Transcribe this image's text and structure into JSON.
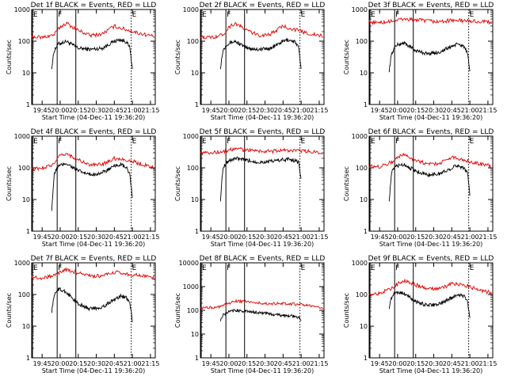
{
  "figure": {
    "ylabel": "Counts/sec",
    "xlabel": "Start Time (04-Dec-11 19:36:20)",
    "x_ticks": [
      "19:45",
      "20:00",
      "20:15",
      "20:30",
      "20:45",
      "21:00",
      "21:15"
    ],
    "colors": {
      "events": "#000000",
      "lld": "#e00000",
      "axes": "#000000"
    }
  },
  "chart_data": [
    {
      "type": "line",
      "title": "Det 1f BLACK = Events, RED = LLD",
      "yscale": "log",
      "ylim": [
        1,
        1000
      ],
      "y_ticks": [
        "1",
        "10",
        "100",
        "1000"
      ],
      "xlim": [
        "19:36:20",
        "21:19:00"
      ],
      "xticks": [
        "19:45",
        "20:00",
        "20:15",
        "20:30",
        "20:45",
        "21:00",
        "21:15"
      ],
      "markers": [
        {
          "label": "E",
          "time": "19:37:00",
          "style": "solid"
        },
        {
          "label": "F",
          "time": "19:57:30",
          "style": "solid"
        },
        {
          "label": "",
          "time": "20:13:00",
          "style": "solid"
        },
        {
          "label": "E",
          "time": "20:59:00",
          "style": "dotted"
        }
      ],
      "series": [
        {
          "name": "Events",
          "color": "#000000",
          "time": [
            "19:53",
            "19:55",
            "19:58",
            "20:05",
            "20:15",
            "20:25",
            "20:35",
            "20:45",
            "20:50",
            "20:55",
            "20:58",
            "21:00"
          ],
          "values": [
            15,
            50,
            80,
            100,
            60,
            55,
            60,
            100,
            110,
            95,
            60,
            12
          ]
        },
        {
          "name": "LLD",
          "color": "#e00000",
          "time": [
            "19:36",
            "19:45",
            "19:55",
            "20:00",
            "20:05",
            "20:15",
            "20:25",
            "20:35",
            "20:45",
            "20:55",
            "21:05",
            "21:15",
            "21:18"
          ],
          "values": [
            140,
            130,
            160,
            280,
            370,
            220,
            150,
            170,
            300,
            230,
            180,
            150,
            140
          ]
        }
      ]
    },
    {
      "type": "line",
      "title": "Det 2f BLACK = Events, RED = LLD",
      "yscale": "log",
      "ylim": [
        1,
        1000
      ],
      "y_ticks": [
        "1",
        "10",
        "100",
        "1000"
      ],
      "xlim": [
        "19:36:20",
        "21:19:00"
      ],
      "xticks": [
        "19:45",
        "20:00",
        "20:15",
        "20:30",
        "20:45",
        "21:00",
        "21:15"
      ],
      "markers": [
        {
          "label": "E",
          "time": "19:37:00",
          "style": "solid"
        },
        {
          "label": "F",
          "time": "19:57:30",
          "style": "solid"
        },
        {
          "label": "",
          "time": "20:13:00",
          "style": "solid"
        },
        {
          "label": "E",
          "time": "20:59:00",
          "style": "dotted"
        }
      ],
      "series": [
        {
          "name": "Events",
          "color": "#000000",
          "time": [
            "19:53",
            "19:55",
            "19:58",
            "20:05",
            "20:15",
            "20:25",
            "20:35",
            "20:45",
            "20:50",
            "20:55",
            "20:58",
            "21:00"
          ],
          "values": [
            15,
            50,
            80,
            100,
            60,
            55,
            60,
            100,
            110,
            95,
            60,
            12
          ]
        },
        {
          "name": "LLD",
          "color": "#e00000",
          "time": [
            "19:36",
            "19:45",
            "19:55",
            "20:00",
            "20:05",
            "20:15",
            "20:25",
            "20:35",
            "20:45",
            "20:55",
            "21:05",
            "21:15",
            "21:18"
          ],
          "values": [
            140,
            130,
            160,
            280,
            370,
            220,
            150,
            170,
            300,
            230,
            180,
            150,
            140
          ]
        }
      ]
    },
    {
      "type": "line",
      "title": "Det 3f BLACK = Events, RED = LLD",
      "yscale": "log",
      "ylim": [
        1,
        1000
      ],
      "y_ticks": [
        "1",
        "10",
        "100",
        "1000"
      ],
      "xlim": [
        "19:36:20",
        "21:19:00"
      ],
      "xticks": [
        "19:45",
        "20:00",
        "20:15",
        "20:30",
        "20:45",
        "21:00",
        "21:15"
      ],
      "markers": [
        {
          "label": "E",
          "time": "19:37:00",
          "style": "solid"
        },
        {
          "label": "F",
          "time": "19:57:30",
          "style": "solid"
        },
        {
          "label": "",
          "time": "20:13:00",
          "style": "solid"
        },
        {
          "label": "E",
          "time": "20:59:00",
          "style": "dotted"
        }
      ],
      "series": [
        {
          "name": "Events",
          "color": "#000000",
          "time": [
            "19:53",
            "19:55",
            "19:58",
            "20:05",
            "20:15",
            "20:25",
            "20:35",
            "20:45",
            "20:50",
            "20:55",
            "20:58",
            "21:00"
          ],
          "values": [
            12,
            40,
            70,
            90,
            50,
            40,
            45,
            70,
            80,
            70,
            40,
            10
          ]
        },
        {
          "name": "LLD",
          "color": "#e00000",
          "time": [
            "19:36",
            "19:45",
            "19:55",
            "20:00",
            "20:05",
            "20:15",
            "20:25",
            "20:35",
            "20:45",
            "20:55",
            "21:05",
            "21:15",
            "21:18"
          ],
          "values": [
            400,
            380,
            420,
            460,
            500,
            470,
            430,
            410,
            460,
            440,
            420,
            400,
            390
          ]
        }
      ]
    },
    {
      "type": "line",
      "title": "Det 4f BLACK = Events, RED = LLD",
      "yscale": "log",
      "ylim": [
        1,
        1000
      ],
      "y_ticks": [
        "1",
        "10",
        "100",
        "1000"
      ],
      "xlim": [
        "19:36:20",
        "21:19:00"
      ],
      "xticks": [
        "19:45",
        "20:00",
        "20:15",
        "20:30",
        "20:45",
        "21:00",
        "21:15"
      ],
      "markers": [
        {
          "label": "E",
          "time": "19:37:00",
          "style": "solid"
        },
        {
          "label": "F",
          "time": "19:57:30",
          "style": "solid"
        },
        {
          "label": "",
          "time": "20:13:00",
          "style": "solid"
        },
        {
          "label": "E",
          "time": "20:59:00",
          "style": "dotted"
        }
      ],
      "series": [
        {
          "name": "Events",
          "color": "#000000",
          "time": [
            "19:53",
            "19:55",
            "19:58",
            "20:05",
            "20:15",
            "20:25",
            "20:35",
            "20:45",
            "20:50",
            "20:55",
            "20:58",
            "21:00"
          ],
          "values": [
            5,
            60,
            110,
            140,
            80,
            60,
            70,
            110,
            130,
            100,
            60,
            10
          ]
        },
        {
          "name": "LLD",
          "color": "#e00000",
          "time": [
            "19:36",
            "19:45",
            "19:55",
            "20:00",
            "20:05",
            "20:15",
            "20:25",
            "20:35",
            "20:45",
            "20:55",
            "21:05",
            "21:15",
            "21:18"
          ],
          "values": [
            90,
            100,
            130,
            240,
            280,
            180,
            120,
            130,
            200,
            180,
            140,
            110,
            100
          ]
        }
      ]
    },
    {
      "type": "line",
      "title": "Det 5f BLACK = Events, RED = LLD",
      "yscale": "log",
      "ylim": [
        1,
        1000
      ],
      "y_ticks": [
        "1",
        "10",
        "100",
        "1000"
      ],
      "xlim": [
        "19:36:20",
        "21:19:00"
      ],
      "xticks": [
        "19:45",
        "20:00",
        "20:15",
        "20:30",
        "20:45",
        "21:00",
        "21:15"
      ],
      "markers": [
        {
          "label": "E",
          "time": "19:37:00",
          "style": "solid"
        },
        {
          "label": "F",
          "time": "19:57:30",
          "style": "solid"
        },
        {
          "label": "",
          "time": "20:13:00",
          "style": "solid"
        },
        {
          "label": "E",
          "time": "20:59:00",
          "style": "dotted"
        }
      ],
      "series": [
        {
          "name": "Events",
          "color": "#000000",
          "time": [
            "19:53",
            "19:55",
            "19:58",
            "20:05",
            "20:15",
            "20:25",
            "20:35",
            "20:45",
            "20:50",
            "20:55",
            "20:58",
            "21:00"
          ],
          "values": [
            10,
            100,
            150,
            200,
            170,
            150,
            160,
            180,
            190,
            170,
            150,
            40
          ]
        },
        {
          "name": "LLD",
          "color": "#e00000",
          "time": [
            "19:36",
            "19:45",
            "19:55",
            "20:00",
            "20:05",
            "20:15",
            "20:25",
            "20:35",
            "20:45",
            "20:55",
            "21:05",
            "21:15",
            "21:18"
          ],
          "values": [
            300,
            300,
            320,
            360,
            400,
            370,
            340,
            330,
            360,
            350,
            330,
            310,
            300
          ]
        }
      ]
    },
    {
      "type": "line",
      "title": "Det 6f BLACK = Events, RED = LLD",
      "yscale": "log",
      "ylim": [
        1,
        1000
      ],
      "y_ticks": [
        "1",
        "10",
        "100",
        "1000"
      ],
      "xlim": [
        "19:36:20",
        "21:19:00"
      ],
      "xticks": [
        "19:45",
        "20:00",
        "20:15",
        "20:30",
        "20:45",
        "21:00",
        "21:15"
      ],
      "markers": [
        {
          "label": "E",
          "time": "19:37:00",
          "style": "solid"
        },
        {
          "label": "F",
          "time": "19:57:30",
          "style": "solid"
        },
        {
          "label": "",
          "time": "20:13:00",
          "style": "solid"
        },
        {
          "label": "E",
          "time": "20:59:00",
          "style": "dotted"
        }
      ],
      "series": [
        {
          "name": "Events",
          "color": "#000000",
          "time": [
            "19:53",
            "19:55",
            "19:58",
            "20:05",
            "20:15",
            "20:25",
            "20:35",
            "20:45",
            "20:50",
            "20:55",
            "20:58",
            "21:00"
          ],
          "values": [
            10,
            70,
            110,
            130,
            80,
            60,
            65,
            100,
            120,
            100,
            70,
            15
          ]
        },
        {
          "name": "LLD",
          "color": "#e00000",
          "time": [
            "19:36",
            "19:45",
            "19:55",
            "20:00",
            "20:05",
            "20:15",
            "20:25",
            "20:35",
            "20:45",
            "20:55",
            "21:05",
            "21:15",
            "21:18"
          ],
          "values": [
            110,
            110,
            150,
            220,
            260,
            180,
            130,
            140,
            220,
            180,
            140,
            120,
            110
          ]
        }
      ]
    },
    {
      "type": "line",
      "title": "Det 7f BLACK = Events, RED = LLD",
      "yscale": "log",
      "ylim": [
        1,
        1000
      ],
      "y_ticks": [
        "1",
        "10",
        "100",
        "1000"
      ],
      "xlim": [
        "19:36:20",
        "21:19:00"
      ],
      "xticks": [
        "19:45",
        "20:00",
        "20:15",
        "20:30",
        "20:45",
        "21:00",
        "21:15"
      ],
      "markers": [
        {
          "label": "E",
          "time": "19:37:00",
          "style": "solid"
        },
        {
          "label": "F",
          "time": "19:57:30",
          "style": "solid"
        },
        {
          "label": "",
          "time": "20:13:00",
          "style": "solid"
        },
        {
          "label": "E",
          "time": "20:59:00",
          "style": "dotted"
        }
      ],
      "series": [
        {
          "name": "Events",
          "color": "#000000",
          "time": [
            "19:53",
            "19:55",
            "19:58",
            "20:05",
            "20:15",
            "20:25",
            "20:35",
            "20:45",
            "20:50",
            "20:55",
            "20:58",
            "21:00"
          ],
          "values": [
            30,
            90,
            150,
            120,
            50,
            35,
            40,
            70,
            90,
            80,
            50,
            15
          ]
        },
        {
          "name": "LLD",
          "color": "#e00000",
          "time": [
            "19:36",
            "19:45",
            "19:55",
            "20:00",
            "20:05",
            "20:15",
            "20:25",
            "20:35",
            "20:45",
            "20:55",
            "21:05",
            "21:15",
            "21:18"
          ],
          "values": [
            350,
            330,
            400,
            520,
            600,
            480,
            380,
            380,
            500,
            450,
            400,
            350,
            330
          ]
        }
      ]
    },
    {
      "type": "line",
      "title": "Det 8f BLACK = Events, RED = LLD",
      "yscale": "log",
      "ylim": [
        1,
        10000
      ],
      "y_ticks": [
        "1",
        "10",
        "100",
        "1000",
        "10000"
      ],
      "xlim": [
        "19:36:20",
        "21:19:00"
      ],
      "xticks": [
        "19:45",
        "20:00",
        "20:15",
        "20:30",
        "20:45",
        "21:00",
        "21:15"
      ],
      "markers": [
        {
          "label": "E",
          "time": "19:37:00",
          "style": "solid"
        },
        {
          "label": "F",
          "time": "19:57:30",
          "style": "solid"
        },
        {
          "label": "",
          "time": "20:13:00",
          "style": "solid"
        },
        {
          "label": "E",
          "time": "20:59:00",
          "style": "dotted"
        }
      ],
      "series": [
        {
          "name": "Events",
          "color": "#000000",
          "time": [
            "19:53",
            "19:55",
            "19:58",
            "20:05",
            "20:15",
            "20:25",
            "20:35",
            "20:45",
            "20:50",
            "20:55",
            "20:58",
            "21:00"
          ],
          "values": [
            40,
            60,
            80,
            100,
            90,
            80,
            70,
            60,
            60,
            55,
            50,
            40
          ]
        },
        {
          "name": "LLD",
          "color": "#e00000",
          "time": [
            "19:36",
            "19:45",
            "19:55",
            "20:00",
            "20:05",
            "20:15",
            "20:25",
            "20:35",
            "20:45",
            "20:55",
            "21:05",
            "21:15",
            "21:18"
          ],
          "values": [
            120,
            130,
            150,
            200,
            250,
            230,
            200,
            190,
            200,
            180,
            160,
            130,
            120
          ]
        }
      ]
    },
    {
      "type": "line",
      "title": "Det 9f BLACK = Events, RED = LLD",
      "yscale": "log",
      "ylim": [
        1,
        1000
      ],
      "y_ticks": [
        "1",
        "10",
        "100",
        "1000"
      ],
      "xlim": [
        "19:36:20",
        "21:19:00"
      ],
      "xticks": [
        "19:45",
        "20:00",
        "20:15",
        "20:30",
        "20:45",
        "21:00",
        "21:15"
      ],
      "markers": [
        {
          "label": "E",
          "time": "19:37:00",
          "style": "solid"
        },
        {
          "label": "F",
          "time": "19:57:30",
          "style": "solid"
        },
        {
          "label": "",
          "time": "20:13:00",
          "style": "solid"
        },
        {
          "label": "E",
          "time": "20:59:00",
          "style": "dotted"
        }
      ],
      "series": [
        {
          "name": "Events",
          "color": "#000000",
          "time": [
            "19:53",
            "19:55",
            "19:58",
            "20:05",
            "20:15",
            "20:25",
            "20:35",
            "20:45",
            "20:50",
            "20:55",
            "20:58",
            "21:00"
          ],
          "values": [
            40,
            80,
            120,
            110,
            60,
            45,
            50,
            80,
            100,
            90,
            60,
            20
          ]
        },
        {
          "name": "LLD",
          "color": "#e00000",
          "time": [
            "19:36",
            "19:45",
            "19:55",
            "20:00",
            "20:05",
            "20:15",
            "20:25",
            "20:35",
            "20:45",
            "20:55",
            "21:05",
            "21:15",
            "21:18"
          ],
          "values": [
            100,
            110,
            150,
            220,
            280,
            200,
            150,
            150,
            220,
            200,
            150,
            120,
            110
          ]
        }
      ]
    }
  ]
}
